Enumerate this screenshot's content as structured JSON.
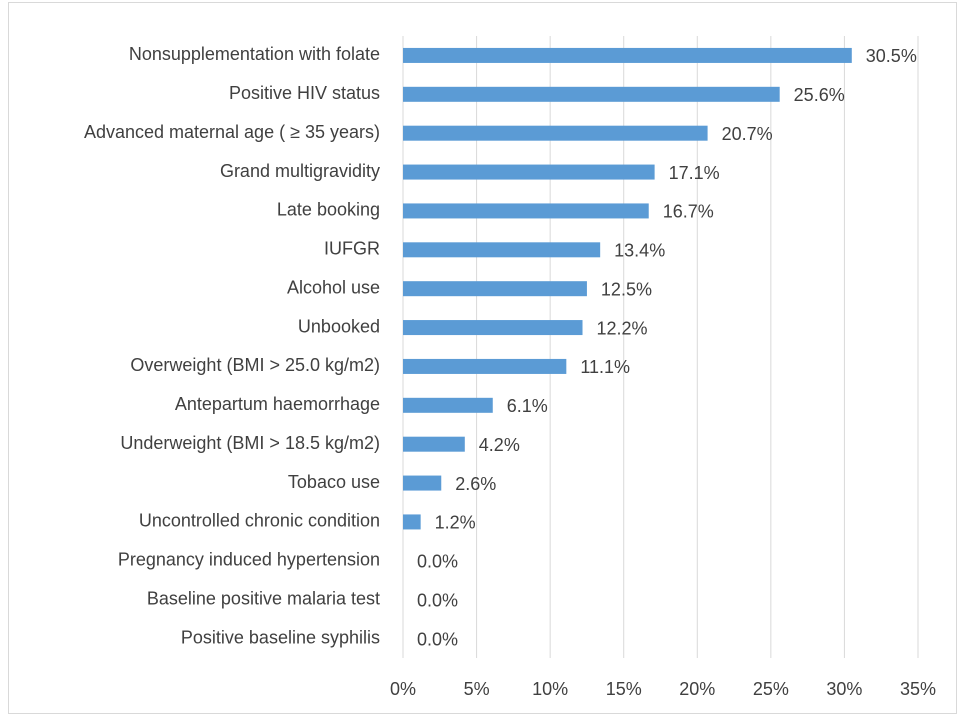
{
  "chart_data": {
    "type": "hbar",
    "categories": [
      "Nonsupplementation with folate",
      "Positive HIV status",
      "Advanced maternal age ( ≥ 35 years)",
      "Grand multigravidity",
      "Late booking",
      "IUFGR",
      "Alcohol use",
      "Unbooked",
      "Overweight (BMI  > 25.0 kg/m2)",
      "Antepartum haemorrhage",
      "Underweight (BMI  > 18.5 kg/m2)",
      "Tobaco use",
      "Uncontrolled chronic condition",
      "Pregnancy induced hypertension",
      "Baseline positive malaria test",
      "Positive baseline syphilis"
    ],
    "values": [
      30.5,
      25.6,
      20.7,
      17.1,
      16.7,
      13.4,
      12.5,
      12.2,
      11.1,
      6.1,
      4.2,
      2.6,
      1.2,
      0.0,
      0.0,
      0.0
    ],
    "value_labels": [
      "30.5%",
      "25.6%",
      "20.7%",
      "17.1%",
      "16.7%",
      "13.4%",
      "12.5%",
      "12.2%",
      "11.1%",
      "6.1%",
      "4.2%",
      "2.6%",
      "1.2%",
      "0.0%",
      "0.0%",
      "0.0%"
    ],
    "color": "#5b9bd5",
    "xlim": [
      0,
      35
    ],
    "xticks": [
      {
        "value": 0,
        "label": "0%"
      },
      {
        "value": 5,
        "label": "5%"
      },
      {
        "value": 10,
        "label": "10%"
      },
      {
        "value": 15,
        "label": "15%"
      },
      {
        "value": 20,
        "label": "20%"
      },
      {
        "value": 25,
        "label": "25%"
      },
      {
        "value": 30,
        "label": "30%"
      },
      {
        "value": 35,
        "label": "35%"
      }
    ],
    "grid": true
  }
}
